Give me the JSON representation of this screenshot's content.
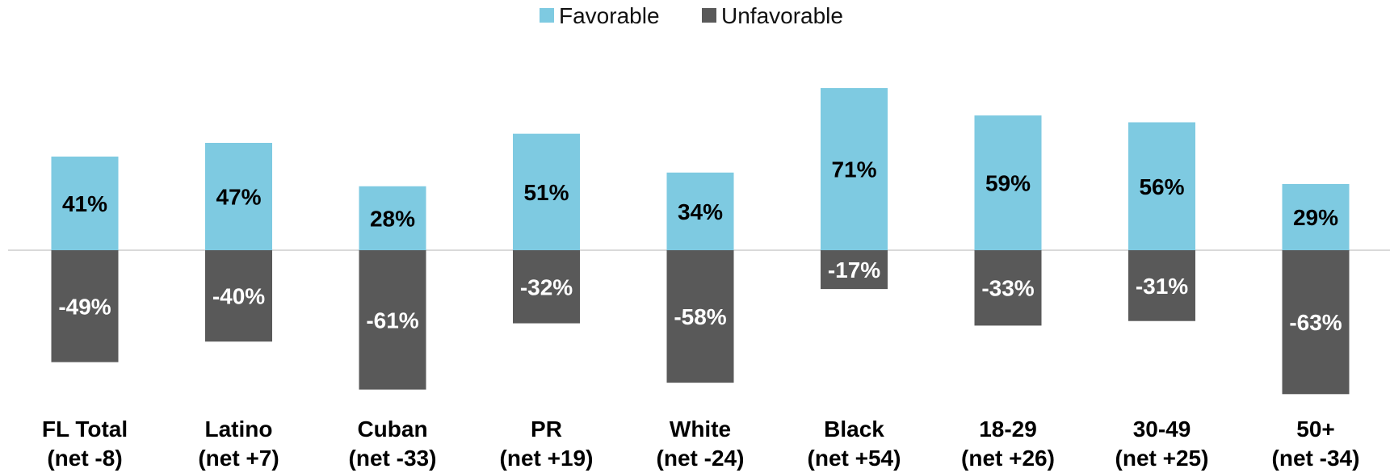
{
  "chart_data": {
    "type": "bar",
    "categories": [
      {
        "name": "FL Total",
        "net": "(net -8)"
      },
      {
        "name": "Latino",
        "net": "(net +7)"
      },
      {
        "name": "Cuban",
        "net": "(net -33)"
      },
      {
        "name": "PR",
        "net": "(net +19)"
      },
      {
        "name": "White",
        "net": "(net -24)"
      },
      {
        "name": "Black",
        "net": "(net +54)"
      },
      {
        "name": "18-29",
        "net": "(net +26)"
      },
      {
        "name": "30-49",
        "net": "(net +25)"
      },
      {
        "name": "50+",
        "net": "(net -34)"
      }
    ],
    "series": [
      {
        "name": "Favorable",
        "color": "#7ecae1",
        "label_color": "#000000",
        "values": [
          41,
          47,
          28,
          51,
          34,
          71,
          59,
          56,
          29
        ],
        "labels": [
          "41%",
          "47%",
          "28%",
          "51%",
          "34%",
          "71%",
          "59%",
          "56%",
          "29%"
        ]
      },
      {
        "name": "Unfavorable",
        "color": "#595959",
        "label_color": "#ffffff",
        "values": [
          -49,
          -40,
          -61,
          -32,
          -58,
          -17,
          -33,
          -31,
          -63
        ],
        "labels": [
          "-49%",
          "-40%",
          "-61%",
          "-32%",
          "-58%",
          "-17%",
          "-33%",
          "-31%",
          "-63%"
        ]
      }
    ],
    "ylim": [
      -63,
      71
    ],
    "grid": false,
    "legend_position": "top-center",
    "baseline_color": "#d9d9d9"
  }
}
